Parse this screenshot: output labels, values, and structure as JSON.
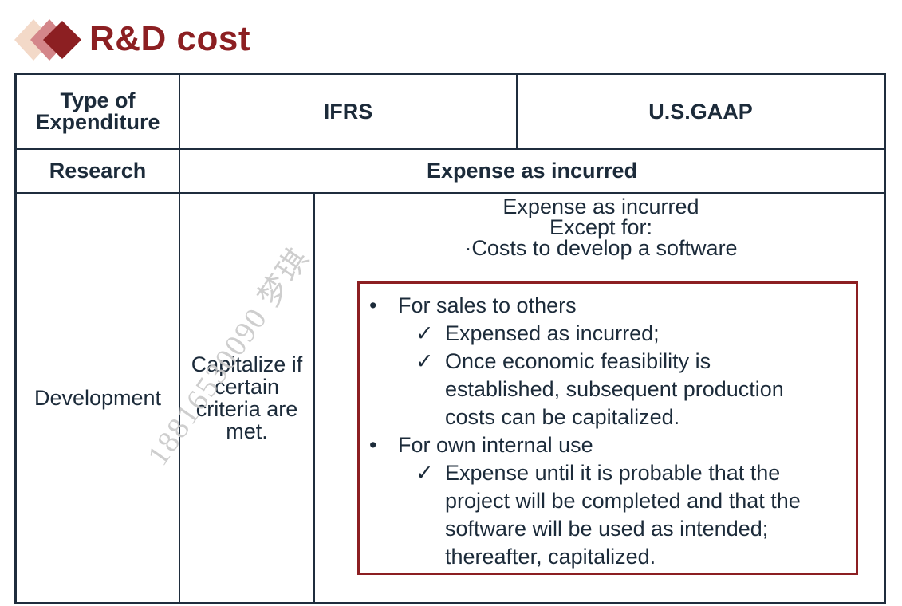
{
  "title": "R&D cost",
  "colors": {
    "accent": "#8c1f22",
    "diamond_light": "#f3d9c8",
    "diamond_mid": "#d4868a",
    "border": "#1f2d3d"
  },
  "table": {
    "headers": {
      "type": "Type of Expenditure",
      "ifrs": "IFRS",
      "usgaap": "U.S.GAAP"
    },
    "research": {
      "label": "Research",
      "value": "Expense as incurred"
    },
    "development": {
      "label": "Development",
      "ifrs": "Capitalize if certain criteria are met.",
      "usgaap_intro": [
        "Expense as incurred",
        "Except for:",
        "·Costs to develop a software"
      ],
      "bullets": [
        {
          "text": "For sales to others",
          "checks": [
            [
              "Expensed as incurred;"
            ],
            [
              "Once economic feasibility is",
              "established, subsequent production",
              "costs can be capitalized."
            ]
          ]
        },
        {
          "text": "For own internal use",
          "checks": [
            [
              "Expense until it is probable that the",
              "project will be completed and that the",
              "software will be used as intended;",
              "thereafter, capitalized."
            ]
          ]
        }
      ]
    }
  },
  "watermark": "18816530090 梦琪",
  "icons": {
    "bullet": "•",
    "check": "✓"
  }
}
